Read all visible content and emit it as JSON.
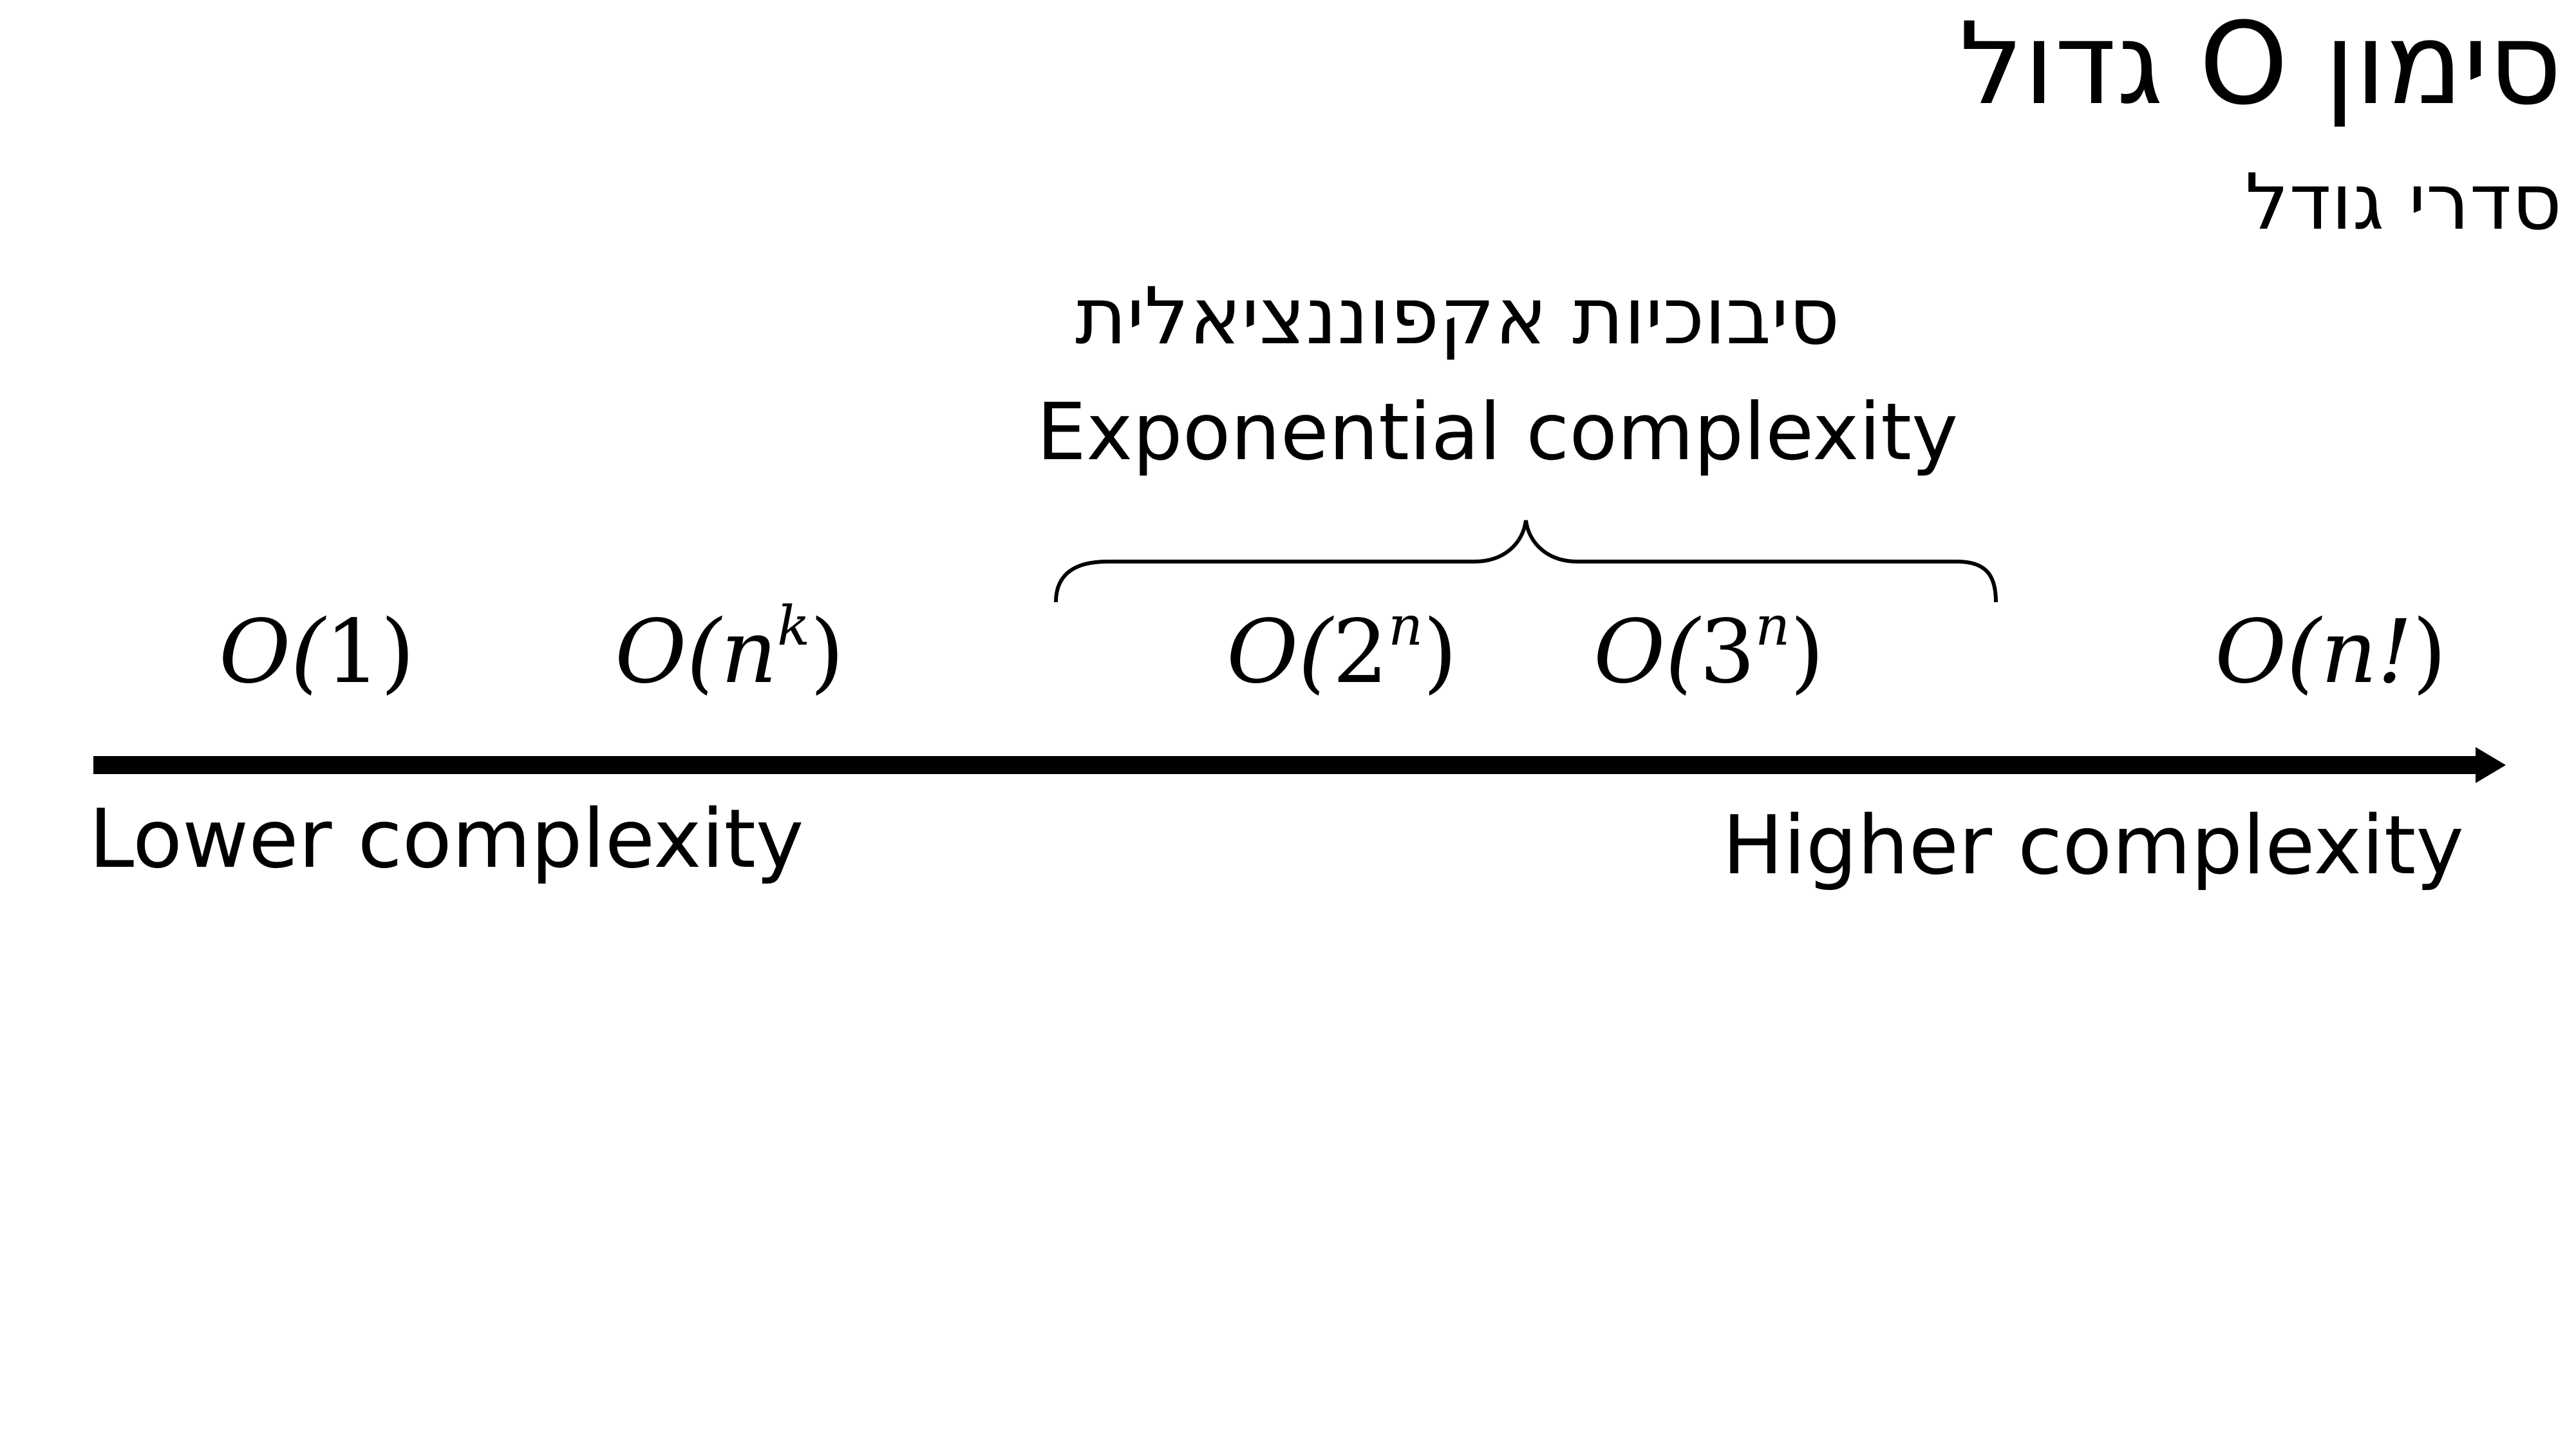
{
  "header": {
    "title": "סימון O גדול",
    "subtitle": "סדרי גודל"
  },
  "brace_group": {
    "label_he": "סיבוכיות אקפוננציאלית",
    "label_en": "Exponential complexity"
  },
  "axis": {
    "low_label": "Lower complexity",
    "high_label": "Higher complexity"
  },
  "terms": [
    {
      "prefix": "O(",
      "base": "1",
      "exp": "",
      "suffix": ")"
    },
    {
      "prefix": "O(",
      "base": "n",
      "exp": "k",
      "suffix": ")"
    },
    {
      "prefix": "O(",
      "base": "2",
      "exp": "n",
      "suffix": ")"
    },
    {
      "prefix": "O(",
      "base": "3",
      "exp": "n",
      "suffix": ")"
    },
    {
      "prefix": "O(",
      "base": "n!",
      "exp": "",
      "suffix": ")"
    }
  ],
  "colors": {
    "ink": "#000000",
    "background": "#ffffff"
  }
}
